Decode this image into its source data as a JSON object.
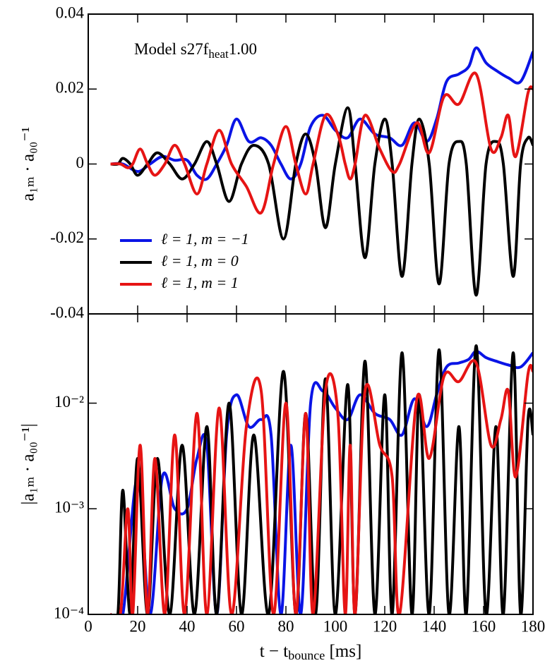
{
  "chart_data": [
    {
      "type": "line",
      "annotation": [
        "Model s27f",
        "heat",
        "1.00"
      ],
      "ylabel": "a₁ₘ · a₀₀⁻¹",
      "xlim": [
        0,
        180
      ],
      "xticks": [
        0,
        20,
        40,
        60,
        80,
        100,
        120,
        140,
        160,
        180
      ],
      "xtick_labels": false,
      "ylim": [
        -0.04,
        0.04
      ],
      "yticks": [
        -0.04,
        -0.02,
        0,
        0.02,
        0.04
      ],
      "legend": "lower left",
      "series": [
        {
          "name": "ℓ = 1, m = −1",
          "color": "#0a14e6",
          "x": [
            9,
            14,
            20,
            25,
            30,
            35,
            40,
            44,
            48,
            52,
            56,
            60,
            65,
            70,
            74,
            78,
            82,
            86,
            90,
            95,
            100,
            105,
            110,
            116,
            122,
            127,
            132,
            137,
            141,
            145,
            150,
            154,
            157,
            161,
            165,
            170,
            175,
            180
          ],
          "values": [
            0,
            0,
            -0.002,
            0,
            0.002,
            0.001,
            0.001,
            -0.003,
            -0.004,
            0,
            0.005,
            0.012,
            0.006,
            0.007,
            0.005,
            0,
            -0.004,
            0,
            0.01,
            0.013,
            0.009,
            0.007,
            0.012,
            0.008,
            0.007,
            0.005,
            0.011,
            0.006,
            0.012,
            0.022,
            0.024,
            0.026,
            0.031,
            0.027,
            0.025,
            0.023,
            0.022,
            0.03
          ]
        },
        {
          "name": "ℓ = 1, m = 0",
          "color": "#000000",
          "x": [
            9,
            12,
            14,
            17,
            20,
            24,
            28,
            33,
            38,
            43,
            48,
            52,
            57,
            62,
            67,
            73,
            79,
            84,
            88,
            92,
            96,
            100,
            105,
            108,
            112,
            116,
            120,
            123,
            127,
            131,
            134,
            138,
            142,
            146,
            150,
            153,
            157,
            161,
            165,
            168,
            172,
            175,
            178,
            180
          ],
          "values": [
            0,
            0,
            0.0015,
            0,
            -0.003,
            0,
            0.003,
            0,
            -0.004,
            0,
            0.006,
            0,
            -0.01,
            0,
            0.005,
            0,
            -0.02,
            0,
            0.008,
            0,
            -0.017,
            0,
            0.015,
            0,
            -0.025,
            0,
            0.012,
            0,
            -0.03,
            0,
            0.012,
            0,
            -0.032,
            0,
            0.006,
            0,
            -0.035,
            0,
            0.006,
            0,
            -0.03,
            0,
            0.007,
            0.005
          ]
        },
        {
          "name": "ℓ = 1, m = 1",
          "color": "#e61414",
          "x": [
            9,
            13,
            16,
            18,
            21,
            24,
            27,
            31,
            35,
            39,
            44,
            48,
            53,
            58,
            64,
            70,
            75,
            80,
            84,
            88,
            91,
            96,
            101,
            104,
            106,
            108,
            112,
            118,
            123,
            126,
            133,
            138,
            144,
            150,
            157,
            163,
            167,
            170,
            173,
            178,
            180
          ],
          "values": [
            0,
            0,
            -0.001,
            0,
            0.004,
            0,
            -0.003,
            0,
            0.005,
            0,
            -0.008,
            0,
            0.009,
            0,
            -0.006,
            -0.013,
            0,
            0.01,
            0,
            -0.008,
            0,
            0.013,
            0.008,
            0,
            -0.004,
            0,
            0.013,
            0.004,
            -0.002,
            0,
            0.011,
            0.003,
            0.018,
            0.016,
            0.024,
            0.004,
            0.007,
            0.013,
            0.002,
            0.019,
            0.02
          ]
        }
      ]
    },
    {
      "type": "line",
      "ylabel": "|a₁ₘ · a₀₀⁻¹|",
      "xlabel": [
        "t − t",
        "bounce",
        " [ms]"
      ],
      "xlim": [
        0,
        180
      ],
      "xticks": [
        0,
        20,
        40,
        60,
        80,
        100,
        120,
        140,
        160,
        180
      ],
      "xtick_labels": true,
      "ylim": [
        0.0001,
        0.07
      ],
      "log_y": true,
      "yticks": [
        {
          "value": 0.0001,
          "label": "10⁻⁴"
        },
        {
          "value": 0.001,
          "label": "10⁻³"
        },
        {
          "value": 0.01,
          "label": "10⁻²"
        }
      ],
      "series": [
        {
          "name": "ℓ = 1, m = −1",
          "color": "#0a14e6",
          "x": [
            9,
            14,
            20,
            25,
            30,
            35,
            40,
            44,
            48,
            52,
            56,
            60,
            65,
            70,
            74,
            78,
            82,
            86,
            90,
            95,
            100,
            105,
            110,
            116,
            122,
            127,
            132,
            137,
            141,
            145,
            150,
            154,
            157,
            161,
            165,
            170,
            175,
            180
          ],
          "values": [
            0.0001,
            0.0001,
            0.002,
            0.0001,
            0.002,
            0.001,
            0.001,
            0.003,
            0.004,
            0.0001,
            0.005,
            0.012,
            0.006,
            0.007,
            0.005,
            0.0001,
            0.004,
            0.0001,
            0.01,
            0.013,
            0.009,
            0.007,
            0.012,
            0.008,
            0.007,
            0.005,
            0.011,
            0.006,
            0.012,
            0.022,
            0.024,
            0.026,
            0.031,
            0.027,
            0.025,
            0.023,
            0.022,
            0.03
          ]
        },
        {
          "name": "ℓ = 1, m = 0",
          "color": "#000000",
          "x": [
            9,
            12,
            14,
            17,
            20,
            24,
            28,
            33,
            38,
            43,
            48,
            52,
            57,
            62,
            67,
            73,
            79,
            84,
            88,
            92,
            96,
            100,
            105,
            108,
            112,
            116,
            120,
            123,
            127,
            131,
            134,
            138,
            142,
            146,
            150,
            153,
            157,
            161,
            165,
            168,
            172,
            175,
            178,
            180
          ],
          "values": [
            0.0001,
            0.0001,
            0.0015,
            0.0001,
            0.003,
            0.0001,
            0.003,
            0.0001,
            0.004,
            0.0001,
            0.006,
            0.0001,
            0.01,
            0.0001,
            0.005,
            0.0001,
            0.02,
            0.0001,
            0.008,
            0.0001,
            0.017,
            0.0001,
            0.015,
            0.0001,
            0.025,
            0.0001,
            0.012,
            0.0001,
            0.03,
            0.0001,
            0.012,
            0.0001,
            0.032,
            0.0001,
            0.006,
            0.0001,
            0.035,
            0.0001,
            0.006,
            0.0001,
            0.03,
            0.0001,
            0.007,
            0.005
          ]
        },
        {
          "name": "ℓ = 1, m = 1",
          "color": "#e61414",
          "x": [
            9,
            13,
            16,
            18,
            21,
            24,
            27,
            31,
            35,
            39,
            44,
            48,
            53,
            58,
            64,
            70,
            75,
            80,
            84,
            88,
            91,
            96,
            101,
            104,
            106,
            108,
            112,
            118,
            123,
            126,
            133,
            138,
            144,
            150,
            157,
            163,
            167,
            170,
            173,
            178,
            180
          ],
          "values": [
            0.0001,
            0.0001,
            0.001,
            0.0001,
            0.004,
            0.0001,
            0.003,
            0.0001,
            0.005,
            0.0001,
            0.008,
            0.0001,
            0.009,
            0.0001,
            0.006,
            0.013,
            0.0001,
            0.01,
            0.0001,
            0.008,
            0.0001,
            0.013,
            0.008,
            0.0001,
            0.004,
            0.0001,
            0.013,
            0.004,
            0.002,
            0.0001,
            0.011,
            0.003,
            0.018,
            0.016,
            0.024,
            0.004,
            0.007,
            0.013,
            0.002,
            0.019,
            0.02
          ]
        }
      ]
    }
  ]
}
